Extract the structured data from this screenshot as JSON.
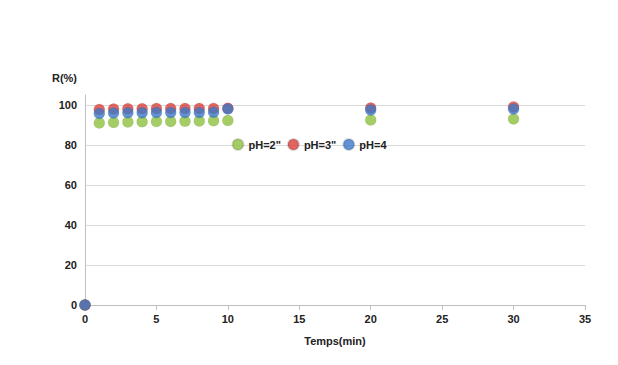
{
  "chart_data": {
    "type": "scatter",
    "x_label": "Temps(min)",
    "y_label": "R(%)",
    "xlim": [
      0,
      35
    ],
    "xticks": [
      0,
      5,
      10,
      15,
      20,
      25,
      30,
      35
    ],
    "ylim": [
      0,
      105
    ],
    "yticks": [
      0,
      20,
      40,
      60,
      80,
      100
    ],
    "grid": true,
    "legend": "center",
    "marker": "circle",
    "series": [
      {
        "name": "pH=2\"",
        "color": "#8dc03f",
        "x": [
          0,
          1,
          2,
          3,
          4,
          5,
          6,
          7,
          8,
          9,
          10,
          20,
          30
        ],
        "values": [
          0,
          91,
          91.3,
          91.5,
          91.6,
          91.7,
          91.8,
          91.9,
          92,
          92.1,
          92.2,
          92.5,
          93
        ]
      },
      {
        "name": "pH=3\"",
        "color": "#d9403a",
        "x": [
          0,
          1,
          2,
          3,
          4,
          5,
          6,
          7,
          8,
          9,
          10,
          20,
          30
        ],
        "values": [
          0,
          97.8,
          98,
          98.1,
          98.1,
          98.2,
          98.2,
          98.3,
          98.3,
          98.3,
          98.4,
          98.5,
          99
        ]
      },
      {
        "name": "pH=4",
        "color": "#3c78c8",
        "x": [
          0,
          1,
          2,
          3,
          4,
          5,
          6,
          7,
          8,
          9,
          10,
          20,
          30
        ],
        "values": [
          0,
          95.8,
          96,
          96.1,
          96.1,
          96.2,
          96.2,
          96.3,
          96.3,
          96.4,
          98,
          97.5,
          98
        ]
      }
    ]
  }
}
